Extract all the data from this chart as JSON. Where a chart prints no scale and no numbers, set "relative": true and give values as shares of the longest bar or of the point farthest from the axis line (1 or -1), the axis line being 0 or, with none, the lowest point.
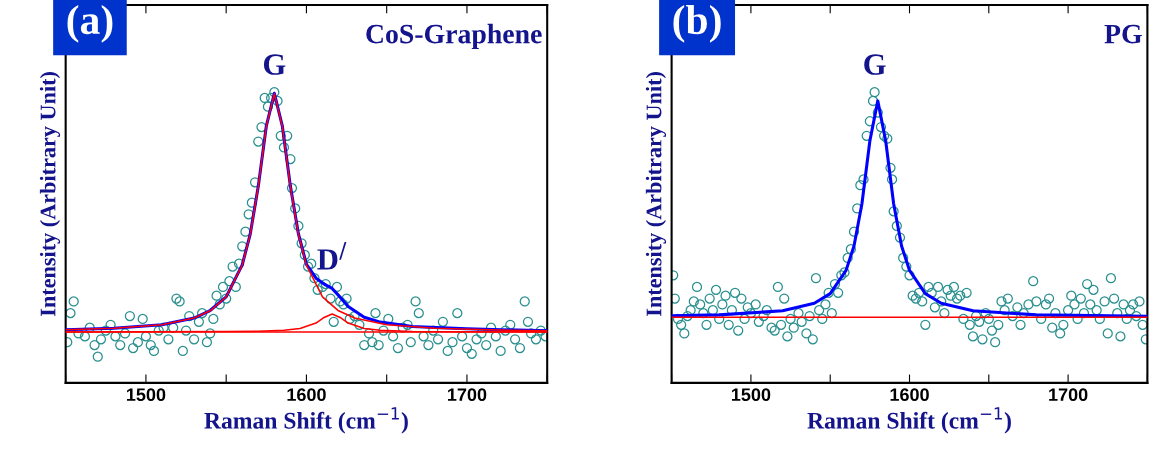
{
  "chart_data": [
    {
      "type": "scatter",
      "relative": true,
      "xlabel": "Raman Shift (cm$^{−1}$)",
      "ylabel": "Intensity (Arbitrary Unit)",
      "xlim": [
        1450,
        1750
      ],
      "xticks": [
        {
          "value": 1450,
          "label": null
        },
        1500,
        {
          "value": 1550,
          "label": null
        },
        1600,
        {
          "value": 1650,
          "label": null
        },
        1700,
        {
          "value": 1750,
          "label": null
        }
      ],
      "tick_labels": "x",
      "grid": false,
      "legend": false,
      "annotations": [
        "(a)",
        "CoS-Graphene",
        "G",
        {
          "text": "D$^{/}$",
          "x": 1616,
          "y": 0.31
        }
      ],
      "series": [
        {
          "marker": "circle",
          "color": "#2a8f8f",
          "x": [
            1451,
            1453,
            1455,
            1458,
            1462,
            1465,
            1468,
            1470,
            1472,
            1475,
            1478,
            1481,
            1484,
            1487,
            1490,
            1492,
            1495,
            1498,
            1500,
            1503,
            1505,
            1508,
            1511,
            1514,
            1517,
            1519,
            1521,
            1523,
            1525,
            1527,
            1530,
            1533,
            1535,
            1538,
            1540,
            1542,
            1544,
            1546,
            1548,
            1550,
            1552,
            1554,
            1556,
            1558,
            1560,
            1562,
            1564,
            1566,
            1568,
            1570,
            1572,
            1574,
            1576,
            1578,
            1580,
            1582,
            1584,
            1586,
            1588,
            1590,
            1591,
            1593,
            1595,
            1597,
            1599,
            1601,
            1603,
            1605,
            1607,
            1610,
            1612,
            1615,
            1617,
            1619,
            1621,
            1623,
            1625,
            1627,
            1630,
            1633,
            1636,
            1639,
            1641,
            1643,
            1645,
            1648,
            1651,
            1654,
            1657,
            1660,
            1663,
            1665,
            1668,
            1670,
            1673,
            1676,
            1679,
            1682,
            1685,
            1688,
            1691,
            1694,
            1697,
            1700,
            1703,
            1706,
            1709,
            1712,
            1715,
            1718,
            1721,
            1724,
            1727,
            1730,
            1733,
            1736,
            1738,
            1740,
            1743,
            1746,
            1749
          ],
          "values": [
            0.14,
            0.24,
            0.28,
            0.17,
            0.16,
            0.19,
            0.13,
            0.09,
            0.15,
            0.18,
            0.2,
            0.16,
            0.13,
            0.17,
            0.23,
            0.12,
            0.14,
            0.22,
            0.16,
            0.13,
            0.11,
            0.18,
            0.19,
            0.15,
            0.19,
            0.29,
            0.28,
            0.11,
            0.18,
            0.23,
            0.15,
            0.21,
            0.24,
            0.14,
            0.17,
            0.22,
            0.3,
            0.27,
            0.33,
            0.29,
            0.35,
            0.4,
            0.33,
            0.41,
            0.47,
            0.52,
            0.58,
            0.62,
            0.69,
            0.83,
            0.88,
            0.98,
            0.95,
            0.98,
            1.0,
            0.97,
            0.85,
            0.81,
            0.85,
            0.77,
            0.67,
            0.6,
            0.54,
            0.48,
            0.44,
            0.4,
            0.41,
            0.36,
            0.32,
            0.33,
            0.34,
            0.29,
            0.21,
            0.33,
            0.28,
            0.27,
            0.29,
            0.22,
            0.23,
            0.2,
            0.13,
            0.17,
            0.14,
            0.24,
            0.13,
            0.18,
            0.22,
            0.16,
            0.12,
            0.19,
            0.2,
            0.14,
            0.28,
            0.24,
            0.16,
            0.13,
            0.18,
            0.15,
            0.21,
            0.11,
            0.14,
            0.24,
            0.16,
            0.12,
            0.1,
            0.15,
            0.17,
            0.13,
            0.19,
            0.16,
            0.11,
            0.18,
            0.2,
            0.15,
            0.12,
            0.28,
            0.21,
            0.17,
            0.15,
            0.18,
            0.16
          ]
        },
        {
          "type": "line",
          "color": "#ff0000",
          "x": [
            1450,
            1750
          ],
          "values": [
            0.175,
            0.175
          ]
        },
        {
          "type": "line",
          "color": "#ff0000",
          "x": [
            1450,
            1480,
            1510,
            1530,
            1540,
            1550,
            1560,
            1565,
            1570,
            1575,
            1580,
            1585,
            1590,
            1595,
            1600,
            1610,
            1620,
            1630,
            1650,
            1680,
            1720,
            1750
          ],
          "values": [
            0.183,
            0.188,
            0.2,
            0.223,
            0.248,
            0.296,
            0.405,
            0.511,
            0.675,
            0.882,
            0.995,
            0.882,
            0.675,
            0.511,
            0.405,
            0.296,
            0.248,
            0.223,
            0.2,
            0.188,
            0.182,
            0.179
          ]
        },
        {
          "type": "line",
          "color": "#ff0000",
          "x": [
            1450,
            1550,
            1570,
            1586,
            1596,
            1606,
            1611,
            1616,
            1621,
            1626,
            1636,
            1646,
            1666,
            1750
          ],
          "values": [
            0.175,
            0.177,
            0.178,
            0.181,
            0.187,
            0.206,
            0.225,
            0.237,
            0.225,
            0.206,
            0.187,
            0.181,
            0.177,
            0.175
          ]
        },
        {
          "type": "line",
          "color": "#0000ff",
          "x": [
            1450,
            1480,
            1510,
            1530,
            1540,
            1550,
            1560,
            1565,
            1570,
            1575,
            1580,
            1585,
            1590,
            1595,
            1600,
            1606,
            1611,
            1616,
            1621,
            1626,
            1636,
            1646,
            1666,
            1700,
            1750
          ],
          "values": [
            0.183,
            0.188,
            0.2,
            0.223,
            0.249,
            0.296,
            0.406,
            0.512,
            0.676,
            0.883,
            0.996,
            0.883,
            0.677,
            0.513,
            0.408,
            0.36,
            0.34,
            0.325,
            0.295,
            0.263,
            0.226,
            0.209,
            0.194,
            0.186,
            0.179
          ]
        }
      ]
    },
    {
      "type": "scatter",
      "relative": true,
      "xlabel": "Raman Shift (cm$^{−1}$)",
      "ylabel": "Intensity (Arbitrary Unit)",
      "xlim": [
        1450,
        1750
      ],
      "xticks": [
        {
          "value": 1450,
          "label": null
        },
        1500,
        {
          "value": 1550,
          "label": null
        },
        1600,
        {
          "value": 1650,
          "label": null
        },
        1700,
        {
          "value": 1750,
          "label": null
        }
      ],
      "tick_labels": "x",
      "grid": false,
      "legend": false,
      "annotations": [
        "(b)",
        "PG",
        "G"
      ],
      "series": [
        {
          "marker": "circle",
          "color": "#2a8f8f",
          "x": [
            1451,
            1452,
            1454,
            1456,
            1458,
            1460,
            1462,
            1464,
            1466,
            1468,
            1470,
            1472,
            1474,
            1476,
            1478,
            1480,
            1482,
            1484,
            1486,
            1488,
            1490,
            1492,
            1494,
            1496,
            1498,
            1500,
            1503,
            1505,
            1508,
            1510,
            1513,
            1515,
            1517,
            1519,
            1521,
            1523,
            1525,
            1527,
            1530,
            1532,
            1535,
            1537,
            1539,
            1541,
            1543,
            1545,
            1547,
            1549,
            1551,
            1553,
            1555,
            1557,
            1559,
            1561,
            1563,
            1565,
            1567,
            1569,
            1571,
            1573,
            1575,
            1577,
            1578,
            1580,
            1582,
            1584,
            1586,
            1588,
            1589,
            1590,
            1592,
            1594,
            1596,
            1598,
            1600,
            1602,
            1604,
            1606,
            1608,
            1610,
            1612,
            1614,
            1616,
            1618,
            1620,
            1622,
            1624,
            1626,
            1628,
            1630,
            1632,
            1634,
            1636,
            1638,
            1640,
            1642,
            1644,
            1646,
            1648,
            1650,
            1652,
            1654,
            1656,
            1658,
            1660,
            1662,
            1665,
            1668,
            1670,
            1672,
            1675,
            1678,
            1680,
            1683,
            1686,
            1688,
            1690,
            1692,
            1695,
            1697,
            1700,
            1702,
            1704,
            1706,
            1708,
            1710,
            1712,
            1714,
            1716,
            1718,
            1720,
            1723,
            1725,
            1727,
            1729,
            1731,
            1733,
            1735,
            1737,
            1739,
            1741,
            1743,
            1745,
            1747,
            1749
          ],
          "values": [
            0.37,
            0.29,
            0.22,
            0.2,
            0.17,
            0.23,
            0.25,
            0.28,
            0.33,
            0.27,
            0.24,
            0.2,
            0.29,
            0.25,
            0.32,
            0.22,
            0.27,
            0.3,
            0.2,
            0.25,
            0.31,
            0.18,
            0.29,
            0.22,
            0.26,
            0.24,
            0.27,
            0.21,
            0.23,
            0.25,
            0.19,
            0.18,
            0.33,
            0.2,
            0.29,
            0.16,
            0.22,
            0.19,
            0.24,
            0.21,
            0.17,
            0.23,
            0.15,
            0.36,
            0.25,
            0.22,
            0.27,
            0.31,
            0.24,
            0.34,
            0.31,
            0.37,
            0.38,
            0.43,
            0.46,
            0.52,
            0.6,
            0.68,
            0.7,
            0.85,
            0.9,
            0.97,
            1.0,
            0.93,
            0.88,
            0.85,
            0.84,
            0.74,
            0.7,
            0.59,
            0.54,
            0.5,
            0.43,
            0.4,
            0.37,
            0.3,
            0.29,
            0.31,
            0.28,
            0.2,
            0.33,
            0.31,
            0.26,
            0.33,
            0.28,
            0.24,
            0.32,
            0.3,
            0.33,
            0.29,
            0.3,
            0.22,
            0.31,
            0.2,
            0.16,
            0.23,
            0.21,
            0.15,
            0.24,
            0.22,
            0.18,
            0.14,
            0.2,
            0.28,
            0.25,
            0.29,
            0.23,
            0.26,
            0.2,
            0.24,
            0.27,
            0.35,
            0.28,
            0.22,
            0.27,
            0.29,
            0.19,
            0.24,
            0.17,
            0.2,
            0.25,
            0.3,
            0.27,
            0.22,
            0.29,
            0.24,
            0.34,
            0.27,
            0.32,
            0.25,
            0.22,
            0.28,
            0.17,
            0.36,
            0.29,
            0.24,
            0.16,
            0.27,
            0.22,
            0.25,
            0.27,
            0.23,
            0.28,
            0.2,
            0.15
          ]
        },
        {
          "type": "line",
          "color": "#ff0000",
          "x": [
            1450,
            1750
          ],
          "values": [
            0.226,
            0.226
          ]
        },
        {
          "type": "line",
          "color": "#0000ff",
          "x": [
            1450,
            1480,
            1520,
            1540,
            1550,
            1560,
            1565,
            1570,
            1575,
            1580,
            1585,
            1590,
            1595,
            1600,
            1610,
            1620,
            1640,
            1680,
            1750
          ],
          "values": [
            0.231,
            0.234,
            0.248,
            0.274,
            0.307,
            0.387,
            0.471,
            0.616,
            0.832,
            0.97,
            0.832,
            0.616,
            0.471,
            0.387,
            0.307,
            0.274,
            0.248,
            0.234,
            0.229
          ]
        }
      ]
    }
  ]
}
